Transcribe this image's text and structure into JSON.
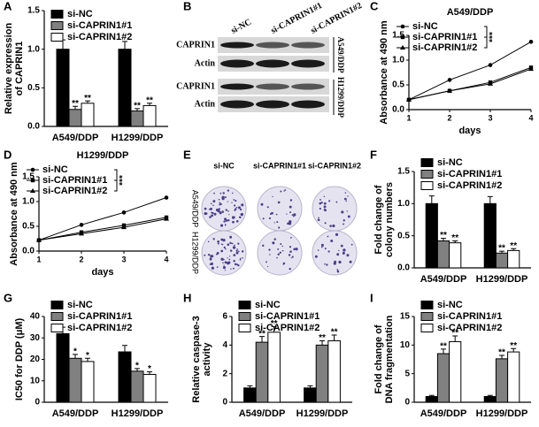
{
  "chart_data": [
    {
      "type": "bar",
      "panel": "A",
      "ylabel": [
        "Relative expression",
        "of CAPRIN1"
      ],
      "categories": [
        "A549/DDP",
        "H1299/DDP"
      ],
      "ylim": [
        0,
        1.5
      ],
      "yticks": [
        {
          "value": 0,
          "label": "0.0"
        },
        0.5,
        {
          "value": 1,
          "label": "1.0"
        },
        1.5
      ],
      "series": [
        {
          "name": "si-NC",
          "color": "#000000",
          "values": [
            1.0,
            1.0
          ],
          "errors": [
            0.12,
            0.1
          ]
        },
        {
          "name": "si-CAPRIN1#1",
          "color": "#808080",
          "values": [
            0.22,
            0.2
          ],
          "errors": [
            0.04,
            0.03
          ]
        },
        {
          "name": "si-CAPRIN1#2",
          "color": "#ffffff",
          "values": [
            0.3,
            0.27
          ],
          "errors": [
            0.03,
            0.03
          ]
        }
      ],
      "annotations": [
        {
          "text": "**",
          "series": 1,
          "category": 0
        },
        {
          "text": "**",
          "series": 2,
          "category": 0
        },
        {
          "text": "**",
          "series": 1,
          "category": 1
        },
        {
          "text": "**",
          "series": 2,
          "category": 1
        }
      ]
    },
    {
      "type": "line",
      "panel": "C",
      "title": "A549/DDP",
      "xlabel": "days",
      "ylabel": [
        "Absorbance at 490 nm"
      ],
      "x": [
        1,
        2,
        3,
        4
      ],
      "xlim": [
        1,
        4
      ],
      "xticks": [
        1,
        2,
        3,
        4
      ],
      "ylim": [
        0,
        1.5
      ],
      "yticks": [
        {
          "value": 0,
          "label": "0.0"
        },
        0.5,
        {
          "value": 1,
          "label": "1.0"
        },
        1.5
      ],
      "series": [
        {
          "name": "si-NC",
          "color": "#000000",
          "marker": "circle",
          "values": [
            0.2,
            0.6,
            0.9,
            1.37
          ]
        },
        {
          "name": "si-CAPRIN1#1",
          "color": "#000000",
          "marker": "square",
          "values": [
            0.2,
            0.38,
            0.55,
            0.85
          ]
        },
        {
          "name": "si-CAPRIN1#2",
          "color": "#000000",
          "marker": "triangle",
          "values": [
            0.2,
            0.38,
            0.52,
            0.82
          ]
        }
      ],
      "annotations": [
        {
          "text": "***"
        }
      ]
    },
    {
      "type": "line",
      "panel": "D",
      "title": "H1299/DDP",
      "xlabel": "days",
      "ylabel": [
        "Absorbance at 490 nm"
      ],
      "x": [
        1,
        2,
        3,
        4
      ],
      "xlim": [
        1,
        4
      ],
      "xticks": [
        1,
        2,
        3,
        4
      ],
      "ylim": [
        0,
        1.5
      ],
      "yticks": [
        {
          "value": 0,
          "label": "0.0"
        },
        0.5,
        {
          "value": 1,
          "label": "1.0"
        },
        1.5
      ],
      "series": [
        {
          "name": "si-NC",
          "color": "#000000",
          "marker": "circle",
          "values": [
            0.22,
            0.53,
            0.78,
            1.08
          ]
        },
        {
          "name": "si-CAPRIN1#1",
          "color": "#000000",
          "marker": "square",
          "values": [
            0.22,
            0.38,
            0.52,
            0.68
          ]
        },
        {
          "name": "si-CAPRIN1#2",
          "color": "#000000",
          "marker": "triangle",
          "values": [
            0.22,
            0.35,
            0.48,
            0.65
          ]
        }
      ],
      "annotations": [
        {
          "text": "***"
        }
      ]
    },
    {
      "type": "bar",
      "panel": "F",
      "ylabel": [
        "Fold change of",
        "colony numbers"
      ],
      "categories": [
        "A549/DDP",
        "H1299/DDP"
      ],
      "ylim": [
        0,
        1.5
      ],
      "yticks": [
        {
          "value": 0,
          "label": "0.0"
        },
        0.5,
        {
          "value": 1,
          "label": "1.0"
        },
        1.5
      ],
      "series": [
        {
          "name": "si-NC",
          "color": "#000000",
          "values": [
            1.0,
            1.0
          ],
          "errors": [
            0.12,
            0.11
          ]
        },
        {
          "name": "si-CAPRIN1#1",
          "color": "#808080",
          "values": [
            0.42,
            0.23
          ],
          "errors": [
            0.04,
            0.03
          ]
        },
        {
          "name": "si-CAPRIN1#2",
          "color": "#ffffff",
          "values": [
            0.39,
            0.27
          ],
          "errors": [
            0.03,
            0.03
          ]
        }
      ],
      "annotations": [
        {
          "text": "**",
          "series": 1,
          "category": 0
        },
        {
          "text": "**",
          "series": 2,
          "category": 0
        },
        {
          "text": "**",
          "series": 1,
          "category": 1
        },
        {
          "text": "**",
          "series": 2,
          "category": 1
        }
      ]
    },
    {
      "type": "bar",
      "panel": "G",
      "ylabel": [
        "IC50 for DDP (μM)"
      ],
      "categories": [
        "A549/DDP",
        "H1299/DDP"
      ],
      "ylim": [
        0,
        40
      ],
      "yticks": [
        0,
        10,
        20,
        30,
        40
      ],
      "series": [
        {
          "name": "si-NC",
          "color": "#000000",
          "values": [
            32,
            23.5
          ],
          "errors": [
            3,
            3
          ]
        },
        {
          "name": "si-CAPRIN1#1",
          "color": "#808080",
          "values": [
            20.5,
            14.5
          ],
          "errors": [
            1.8,
            1.2
          ]
        },
        {
          "name": "si-CAPRIN1#2",
          "color": "#ffffff",
          "values": [
            19,
            13
          ],
          "errors": [
            1.5,
            1.2
          ]
        }
      ],
      "annotations": [
        {
          "text": "*",
          "series": 1,
          "category": 0
        },
        {
          "text": "*",
          "series": 2,
          "category": 0
        },
        {
          "text": "*",
          "series": 1,
          "category": 1
        },
        {
          "text": "*",
          "series": 2,
          "category": 1
        }
      ]
    },
    {
      "type": "bar",
      "panel": "H",
      "ylabel": [
        "Relative caspase-3",
        "activity"
      ],
      "categories": [
        "A549/DDP",
        "H1299/DDP"
      ],
      "ylim": [
        0,
        6
      ],
      "yticks": [
        0,
        2,
        4,
        6
      ],
      "series": [
        {
          "name": "si-NC",
          "color": "#000000",
          "values": [
            1.0,
            1.0
          ],
          "errors": [
            0.15,
            0.15
          ]
        },
        {
          "name": "si-CAPRIN1#1",
          "color": "#808080",
          "values": [
            4.2,
            4.0
          ],
          "errors": [
            0.4,
            0.3
          ]
        },
        {
          "name": "si-CAPRIN1#2",
          "color": "#ffffff",
          "values": [
            4.9,
            4.3
          ],
          "errors": [
            0.4,
            0.4
          ]
        }
      ],
      "annotations": [
        {
          "text": "**",
          "series": 1,
          "category": 0
        },
        {
          "text": "**",
          "series": 2,
          "category": 0
        },
        {
          "text": "**",
          "series": 1,
          "category": 1
        },
        {
          "text": "**",
          "series": 2,
          "category": 1
        }
      ]
    },
    {
      "type": "bar",
      "panel": "I",
      "ylabel": [
        "Fold change of",
        "DNA fragmentation"
      ],
      "categories": [
        "A549/DDP",
        "H1299/DDP"
      ],
      "ylim": [
        0,
        15
      ],
      "yticks": [
        0,
        5,
        10,
        15
      ],
      "series": [
        {
          "name": "si-NC",
          "color": "#000000",
          "values": [
            1.0,
            1.0
          ],
          "errors": [
            0.2,
            0.2
          ]
        },
        {
          "name": "si-CAPRIN1#1",
          "color": "#808080",
          "values": [
            8.5,
            7.6
          ],
          "errors": [
            0.8,
            0.6
          ]
        },
        {
          "name": "si-CAPRIN1#2",
          "color": "#ffffff",
          "values": [
            10.6,
            8.8
          ],
          "errors": [
            1.0,
            0.6
          ]
        }
      ],
      "annotations": [
        {
          "text": "**",
          "series": 1,
          "category": 0
        },
        {
          "text": "**",
          "series": 2,
          "category": 0
        },
        {
          "text": "**",
          "series": 1,
          "category": 1
        },
        {
          "text": "**",
          "series": 2,
          "category": 1
        }
      ]
    }
  ],
  "blot": {
    "panel": "B",
    "columns": [
      "si-NC",
      "si-CAPRIN1#1",
      "si-CAPRIN1#2"
    ],
    "rows": [
      "CAPRIN1",
      "Actin",
      "CAPRIN1",
      "Actin"
    ],
    "groups": [
      "A549/DDP",
      "H1299/DDP"
    ]
  },
  "colony": {
    "panel": "E",
    "columns": [
      "si-NC",
      "si-CAPRIN1#1",
      "si-CAPRIN1#2"
    ],
    "rows": [
      "A549/DDP",
      "H1299/DDP"
    ]
  }
}
